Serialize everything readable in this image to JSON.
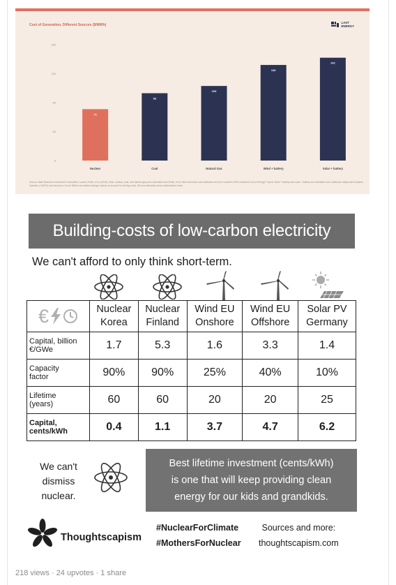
{
  "chart_card": {
    "title": "Cost of Generation, Different Sources ($/MWh)",
    "brand": {
      "line1": "LAST",
      "line2": "ENERGY"
    },
    "source_note": "Source: Balk Research Investment Committee, Lazard, Emlin, et al. (2018). Note: nuclear, coal, and natural gas price estimates from Emlin, et al. Wind and solar cost estimates are from Lazard's 2023 Levelized Cost of Energy+ report. Wind + battery and solar + battery are estimates from California Independent System Operator (CAISO) and assume a 4-hour lithium-ion battery storage system to account for firming costs. All cost estimates show unsubsidized costs."
  },
  "chart_data": {
    "type": "bar",
    "title": "Cost of Generation, Different Sources ($/MWh)",
    "categories": [
      "Nuclear",
      "Coal",
      "Natural Gas",
      "Wind + battery",
      "Solar + battery"
    ],
    "values": [
      71,
      93,
      103,
      132,
      142
    ],
    "ylim": [
      0,
      160
    ],
    "yticks": [
      0,
      40,
      80,
      120,
      160
    ],
    "grid": false,
    "bar_colors": [
      "#e0705e",
      "#2c3352",
      "#2c3352",
      "#2c3352",
      "#2c3352"
    ]
  },
  "infographic": {
    "title": "Building-costs of low-carbon electricity",
    "subtitle": "We can't afford to only think short-term.",
    "corner_symbols": {
      "euro": "€",
      "bolt": "⚡",
      "clock": "🕒"
    },
    "columns": [
      {
        "line1": "Nuclear",
        "line2": "Korea",
        "icon": "atom-icon"
      },
      {
        "line1": "Nuclear",
        "line2": "Finland",
        "icon": "atom-icon"
      },
      {
        "line1": "Wind EU",
        "line2": "Onshore",
        "icon": "wind-turbine-icon"
      },
      {
        "line1": "Wind EU",
        "line2": "Offshore",
        "icon": "wind-turbine-icon"
      },
      {
        "line1": "Solar PV",
        "line2": "Germany",
        "icon": "solar-panel-icon"
      }
    ],
    "rows": [
      {
        "label_line1": "Capital, billion",
        "label_line2": "€/GWe",
        "values": [
          "1.7",
          "5.3",
          "1.6",
          "3.3",
          "1.4"
        ],
        "bold": false
      },
      {
        "label_line1": "Capacity",
        "label_line2": "factor",
        "values": [
          "90%",
          "90%",
          "25%",
          "40%",
          "10%"
        ],
        "bold": false
      },
      {
        "label_line1": "Lifetime",
        "label_line2": "(years)",
        "values": [
          "60",
          "60",
          "20",
          "20",
          "25"
        ],
        "bold": false
      },
      {
        "label_line1": "Capital,",
        "label_line2": "cents/kWh",
        "values": [
          "0.4",
          "1.1",
          "3.7",
          "4.7",
          "6.2"
        ],
        "bold": true
      }
    ],
    "quote": {
      "line1": "We can't",
      "line2": "dismiss",
      "line3": "nuclear."
    },
    "callout": {
      "line1": "Best lifetime investment (cents/kWh)",
      "line2": "is one that will keep providing clean",
      "line3": "energy for our kids and grandkids."
    },
    "logo_text": "Thoughtscapism",
    "hashtags": [
      "#NuclearForClimate",
      "#MothersForNuclear"
    ],
    "sources": {
      "line1": "Sources and more:",
      "line2": "thoughtscapism.com"
    }
  },
  "post_stats": "218 views · 24 upvotes · 1 share"
}
